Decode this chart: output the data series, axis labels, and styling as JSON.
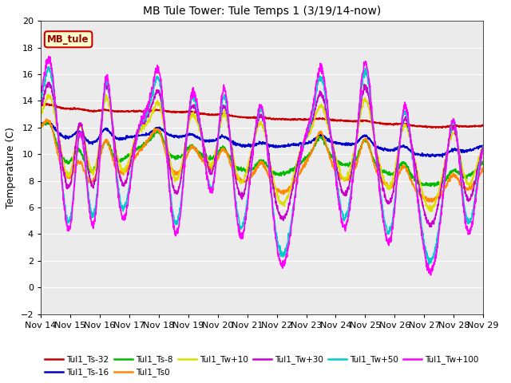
{
  "title": "MB Tule Tower: Tule Temps 1 (3/19/14-now)",
  "ylabel": "Temperature (C)",
  "ylim": [
    -2,
    20
  ],
  "yticks": [
    -2,
    0,
    2,
    4,
    6,
    8,
    10,
    12,
    14,
    16,
    18,
    20
  ],
  "xtick_labels": [
    "Nov 14",
    "Nov 15",
    "Nov 16",
    "Nov 17",
    "Nov 18",
    "Nov 19",
    "Nov 20",
    "Nov 21",
    "Nov 22",
    "Nov 23",
    "Nov 24",
    "Nov 25",
    "Nov 26",
    "Nov 27",
    "Nov 28",
    "Nov 29"
  ],
  "series": {
    "Tul1_Ts-32": {
      "color": "#cc0000",
      "lw": 1.2
    },
    "Tul1_Ts-16": {
      "color": "#0000cc",
      "lw": 1.2
    },
    "Tul1_Ts-8": {
      "color": "#00bb00",
      "lw": 1.2
    },
    "Tul1_Ts0": {
      "color": "#ff8800",
      "lw": 1.2
    },
    "Tul1_Tw+10": {
      "color": "#dddd00",
      "lw": 1.2
    },
    "Tul1_Tw+30": {
      "color": "#cc00cc",
      "lw": 1.2
    },
    "Tul1_Tw+50": {
      "color": "#00cccc",
      "lw": 1.2
    },
    "Tul1_Tw+100": {
      "color": "#ff00ff",
      "lw": 1.2
    }
  },
  "legend_box": {
    "facecolor": "#ffffcc",
    "edgecolor": "#cc0000",
    "text_color": "#990000"
  },
  "legend_label": "MB_tule",
  "bg_color": "#ffffff",
  "plot_bg": "#ebebeb",
  "grid_color": "#ffffff",
  "title_fontsize": 10,
  "label_fontsize": 9,
  "tick_fontsize": 8
}
